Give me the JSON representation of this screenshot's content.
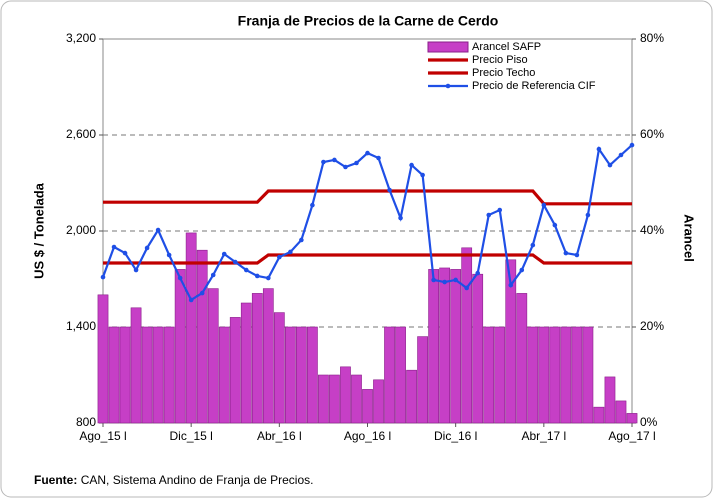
{
  "chart_data": {
    "type": "bar",
    "title": "Franja de Precios de la Carne de Cerdo",
    "ylabel": "US $ / Tonelada",
    "y2label": "Arancel",
    "source": {
      "label": "Fuente:",
      "text": "CAN, Sistema Andino de Franja de Precios."
    },
    "categories": [
      "Ago_15 l",
      null,
      null,
      null,
      null,
      null,
      null,
      null,
      "Dic_15 l",
      null,
      null,
      null,
      null,
      null,
      null,
      null,
      "Abr_16 l",
      null,
      null,
      null,
      null,
      null,
      null,
      null,
      "Ago_16 l",
      null,
      null,
      null,
      null,
      null,
      null,
      null,
      "Dic_16 l",
      null,
      null,
      null,
      null,
      null,
      null,
      null,
      "Abr_17 l",
      null,
      null,
      null,
      null,
      null,
      null,
      null,
      "Ago_17 l"
    ],
    "ylim": [
      800,
      3200
    ],
    "yticks": [
      800,
      {
        "value": 1400,
        "label": "1,400"
      },
      {
        "value": 2000,
        "label": "2,000"
      },
      {
        "value": 2600,
        "label": "2,600"
      },
      {
        "value": 3200,
        "label": "3,200"
      }
    ],
    "y2lim": [
      0,
      80
    ],
    "y2ticks": [
      {
        "value": 0,
        "label": "0%"
      },
      {
        "value": 20,
        "label": "20%"
      },
      {
        "value": 40,
        "label": "40%"
      },
      {
        "value": 60,
        "label": "60%"
      },
      {
        "value": 80,
        "label": "80%"
      }
    ],
    "grid": true,
    "legend": "top-right",
    "series": [
      {
        "name": "Arancel SAFP",
        "type": "bar",
        "axis": "y2",
        "color": "#c63fc6",
        "values": [
          26.7,
          20,
          20,
          24,
          20,
          20,
          20,
          32,
          39.6,
          36,
          28,
          20,
          22,
          25,
          27,
          28,
          23,
          20,
          20,
          20,
          10,
          10,
          11.7,
          10,
          7,
          9,
          20,
          20,
          11,
          18,
          32,
          32.3,
          32,
          36.5,
          31,
          20,
          20,
          34,
          27,
          20,
          20,
          20,
          20,
          20,
          20,
          3.3,
          9.6,
          4.6,
          2
        ]
      },
      {
        "name": "Precio Piso",
        "type": "line",
        "color": "#c00000",
        "values": [
          1800,
          1800,
          1800,
          1800,
          1800,
          1800,
          1800,
          1800,
          1800,
          1800,
          1800,
          1800,
          1800,
          1800,
          1800,
          1850,
          1850,
          1850,
          1850,
          1850,
          1850,
          1850,
          1850,
          1850,
          1850,
          1850,
          1850,
          1850,
          1850,
          1850,
          1850,
          1850,
          1850,
          1850,
          1850,
          1850,
          1850,
          1850,
          1850,
          1850,
          1800,
          1800,
          1800,
          1800,
          1800,
          1800,
          1800,
          1800,
          1800
        ]
      },
      {
        "name": "Precio Techo",
        "type": "line",
        "color": "#c00000",
        "values": [
          2180,
          2180,
          2180,
          2180,
          2180,
          2180,
          2180,
          2180,
          2180,
          2180,
          2180,
          2180,
          2180,
          2180,
          2180,
          2250,
          2250,
          2250,
          2250,
          2250,
          2250,
          2250,
          2250,
          2250,
          2250,
          2250,
          2250,
          2250,
          2250,
          2250,
          2250,
          2250,
          2250,
          2250,
          2250,
          2250,
          2250,
          2250,
          2250,
          2250,
          2170,
          2170,
          2170,
          2170,
          2170,
          2170,
          2170,
          2170,
          2170
        ]
      },
      {
        "name": "Precio de Referencia CIF",
        "type": "line",
        "markers": true,
        "color": "#1f4fe6",
        "values": [
          1712,
          1900,
          1862,
          1756,
          1894,
          2006,
          1850,
          1706,
          1569,
          1612,
          1725,
          1856,
          1806,
          1756,
          1719,
          1706,
          1837,
          1869,
          1944,
          2162,
          2431,
          2444,
          2400,
          2425,
          2487,
          2456,
          2256,
          2081,
          2412,
          2350,
          1694,
          1681,
          1694,
          1644,
          1737,
          2100,
          2131,
          1662,
          1756,
          1912,
          2162,
          2037,
          1862,
          1850,
          2100,
          2512,
          2412,
          2475,
          2537
        ]
      }
    ]
  }
}
